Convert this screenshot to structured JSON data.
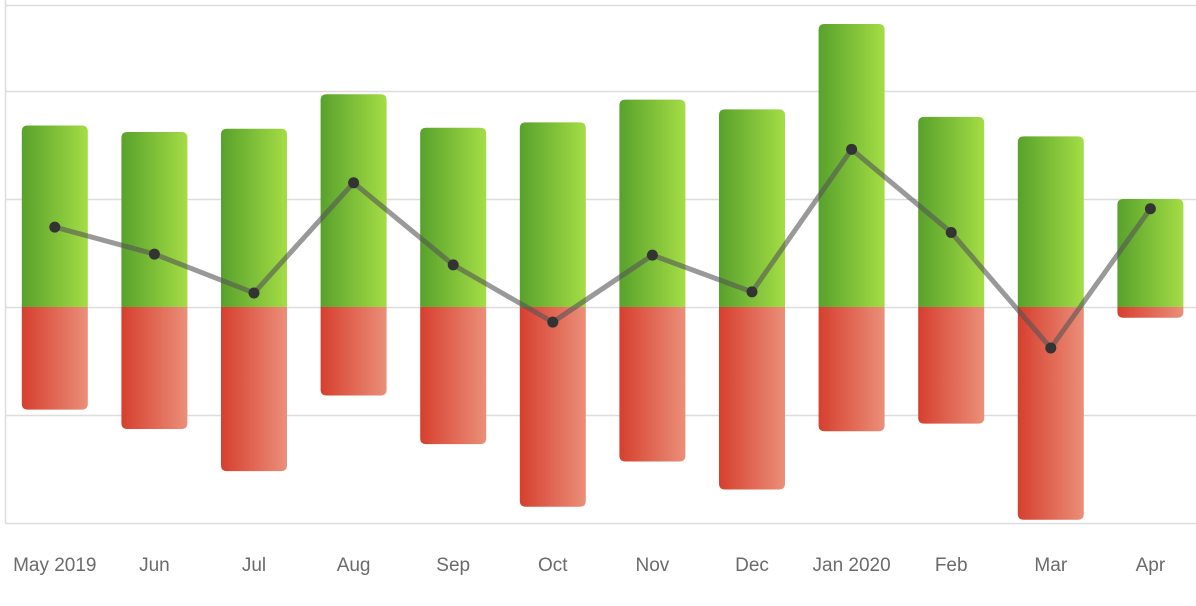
{
  "chart_data": {
    "type": "bar",
    "categories": [
      "May 2019",
      "Jun",
      "Jul",
      "Aug",
      "Sep",
      "Oct",
      "Nov",
      "Dec",
      "Jan 2020",
      "Feb",
      "Mar",
      "Apr"
    ],
    "series": [
      {
        "kind": "bar-positive",
        "values": [
          1.68,
          1.62,
          1.65,
          1.97,
          1.66,
          1.71,
          1.92,
          1.83,
          2.62,
          1.76,
          1.58,
          1.0
        ]
      },
      {
        "kind": "bar-negative",
        "values": [
          -0.95,
          -1.13,
          -1.52,
          -0.82,
          -1.27,
          -1.85,
          -1.43,
          -1.69,
          -1.15,
          -1.08,
          -1.97,
          -0.1
        ]
      },
      {
        "kind": "line",
        "values": [
          0.74,
          0.49,
          0.13,
          1.15,
          0.39,
          -0.14,
          0.48,
          0.14,
          1.46,
          0.69,
          -0.38,
          0.91
        ]
      }
    ],
    "ylim": [
      -2,
      2.8
    ],
    "y_gridlines": [
      -2,
      -1,
      0,
      1,
      2,
      2.8
    ],
    "grid": true,
    "legend": "none",
    "title": "",
    "xlabel": "",
    "ylabel": "",
    "colors": {
      "positive_dark": "#58a12c",
      "positive_light": "#a4dd45",
      "negative_dark": "#d63f2e",
      "negative_light": "#eb8f79",
      "line": "#555555",
      "point": "#333333",
      "grid": "#dddddd",
      "axis_text": "#6b6b6b"
    }
  }
}
